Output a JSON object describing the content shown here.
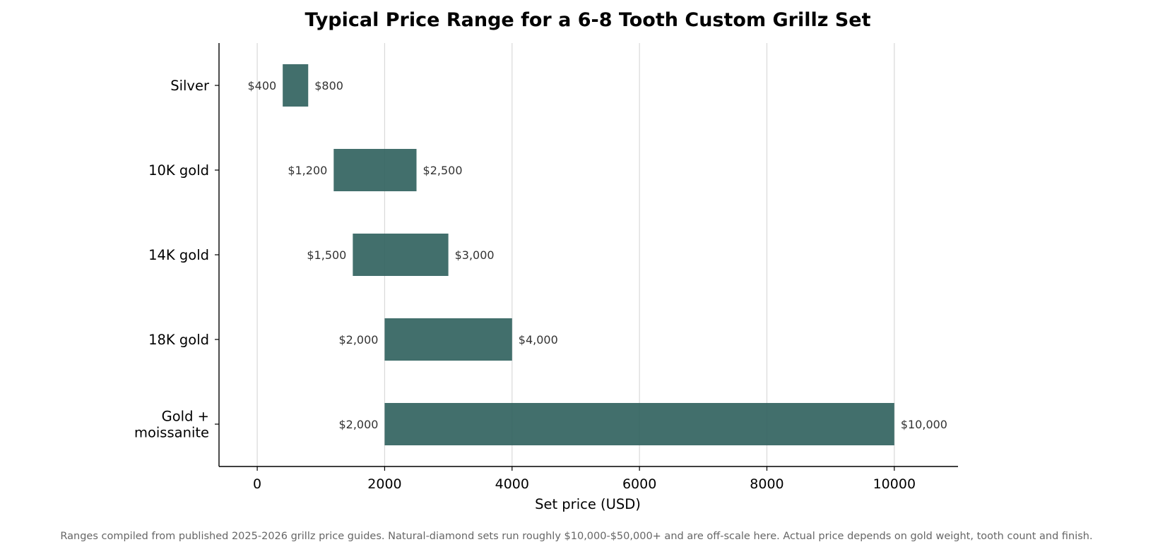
{
  "chart_data": {
    "type": "bar",
    "orientation": "horizontal",
    "title": "Typical Price Range for a 6-8 Tooth Custom Grillz Set",
    "xlabel": "Set price (USD)",
    "ylabel": "",
    "categories": [
      "Silver",
      "10K gold",
      "14K gold",
      "18K gold",
      "Gold + moissanite"
    ],
    "category_lines": [
      [
        "Silver"
      ],
      [
        "10K gold"
      ],
      [
        "14K gold"
      ],
      [
        "18K gold"
      ],
      [
        "Gold +",
        "moissanite"
      ]
    ],
    "low": [
      400,
      1200,
      1500,
      2000,
      2000
    ],
    "high": [
      800,
      2500,
      3000,
      4000,
      10000
    ],
    "low_labels": [
      "$400",
      "$1,200",
      "$1,500",
      "$2,000",
      "$2,000"
    ],
    "high_labels": [
      "$800",
      "$2,500",
      "$3,000",
      "$4,000",
      "$10,000"
    ],
    "xlim": [
      -600,
      11000
    ],
    "xticks": [
      0,
      2000,
      4000,
      6000,
      8000,
      10000
    ],
    "xtick_labels": [
      "0",
      "2000",
      "4000",
      "6000",
      "8000",
      "10000"
    ],
    "grid": "vertical",
    "bar_color": "#2d5f5c",
    "grid_color": "#d9d9d9",
    "footnote": "Ranges compiled from published 2025-2026 grillz price guides. Natural-diamond sets run roughly $10,000-$50,000+ and are off-scale here. Actual price depends on gold weight, tooth count and finish."
  }
}
